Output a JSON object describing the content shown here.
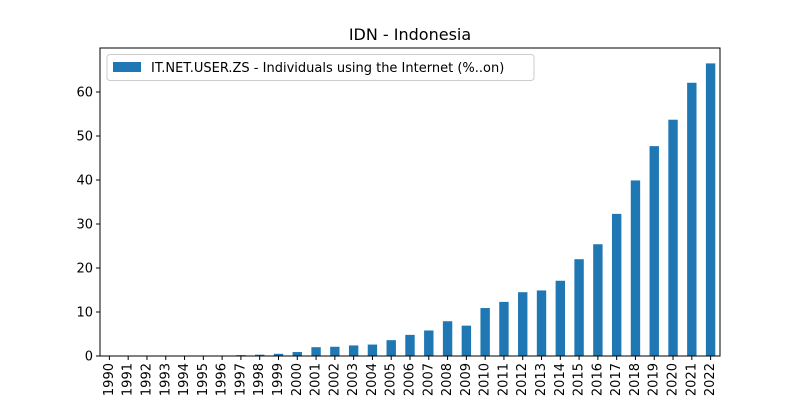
{
  "chart_data": {
    "type": "bar",
    "title": "IDN - Indonesia",
    "xlabel": "",
    "ylabel": "",
    "categories": [
      "1990",
      "1991",
      "1992",
      "1993",
      "1994",
      "1995",
      "1996",
      "1997",
      "1998",
      "1999",
      "2000",
      "2001",
      "2002",
      "2003",
      "2004",
      "2005",
      "2006",
      "2007",
      "2008",
      "2009",
      "2010",
      "2011",
      "2012",
      "2013",
      "2014",
      "2015",
      "2016",
      "2017",
      "2018",
      "2019",
      "2020",
      "2021",
      "2022"
    ],
    "series": [
      {
        "name": "IT.NET.USER.ZS - Individuals using the Internet (%..on)",
        "values": [
          0,
          0,
          0,
          0,
          0.01,
          0.03,
          0.1,
          0.2,
          0.3,
          0.5,
          0.9,
          2.0,
          2.1,
          2.4,
          2.6,
          3.6,
          4.8,
          5.8,
          7.9,
          6.9,
          10.9,
          12.3,
          14.5,
          14.9,
          17.1,
          22.0,
          25.4,
          32.3,
          39.9,
          47.7,
          53.7,
          62.1,
          66.5
        ]
      }
    ],
    "ylim": [
      0,
      70
    ],
    "yticks": [
      0,
      10,
      20,
      30,
      40,
      50,
      60
    ],
    "legend_position": "top-left",
    "grid": false,
    "colors": {
      "bar": "#1f77b4"
    }
  }
}
